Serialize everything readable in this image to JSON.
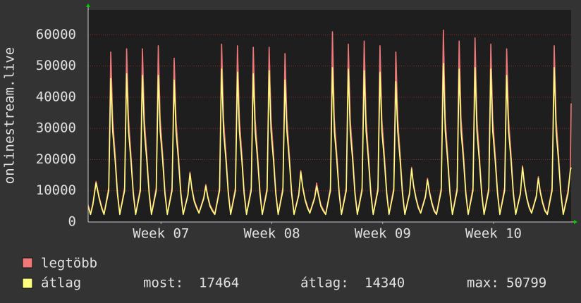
{
  "chart_data": {
    "type": "line",
    "ylabel": "onlinestream.live",
    "x": [
      0,
      0.15,
      0.3,
      0.5,
      0.7,
      0.85,
      1,
      1.3,
      1.43,
      1.55,
      1.7,
      1.85,
      2,
      2.3,
      2.43,
      2.55,
      2.7,
      2.85,
      3,
      3.3,
      3.43,
      3.55,
      3.7,
      3.85,
      4,
      4.3,
      4.43,
      4.55,
      4.7,
      4.85,
      5,
      5.3,
      5.43,
      5.55,
      5.7,
      5.85,
      6,
      6.3,
      6.43,
      6.55,
      6.7,
      6.85,
      7,
      7.3,
      7.43,
      7.55,
      7.7,
      7.85,
      8,
      8.3,
      8.43,
      8.55,
      8.7,
      8.85,
      9,
      9.3,
      9.43,
      9.55,
      9.7,
      9.85,
      10,
      10.3,
      10.43,
      10.55,
      10.7,
      10.85,
      11,
      11.3,
      11.43,
      11.55,
      11.7,
      11.85,
      12,
      12.3,
      12.43,
      12.55,
      12.7,
      12.85,
      13,
      13.3,
      13.43,
      13.55,
      13.7,
      13.85,
      14,
      14.3,
      14.43,
      14.55,
      14.7,
      14.85,
      15,
      15.3,
      15.43,
      15.55,
      15.7,
      15.85,
      16,
      16.3,
      16.43,
      16.55,
      16.7,
      16.85,
      17,
      17.3,
      17.43,
      17.55,
      17.7,
      17.85,
      18,
      18.3,
      18.43,
      18.55,
      18.7,
      18.85,
      19,
      19.3,
      19.43,
      19.55,
      19.7,
      19.85,
      20,
      20.3,
      20.43,
      20.55,
      20.7,
      20.85,
      21,
      21.3,
      21.43,
      21.55,
      21.7,
      21.85,
      22,
      22.3,
      22.43,
      22.55,
      22.7,
      22.85,
      23,
      23.3,
      23.43,
      23.55,
      23.7,
      23.85,
      24,
      24.3,
      24.43,
      24.55,
      24.7,
      24.85,
      25,
      25.3,
      25.43,
      25.55,
      25.7,
      25.85,
      26,
      26.3,
      26.43,
      26.55,
      26.7,
      26.85,
      27,
      27.3,
      27.43,
      27.55,
      27.7,
      27.85,
      28,
      28.3,
      28.43,
      28.55,
      28.7,
      28.85,
      29,
      29.3,
      29.43,
      29.55,
      29.7,
      29.85,
      30,
      30.3,
      30.45,
      30.5
    ],
    "series": [
      {
        "name": "legtöbb",
        "color": "#f07878",
        "values": [
          5500,
          2600,
          6000,
          13000,
          8000,
          5000,
          2600,
          11000,
          54500,
          33000,
          22000,
          10000,
          2600,
          11000,
          55500,
          33000,
          22000,
          10000,
          2600,
          11000,
          55500,
          33000,
          22000,
          10000,
          2600,
          11000,
          56500,
          33000,
          22000,
          10000,
          2600,
          11000,
          52500,
          33000,
          22000,
          10000,
          2600,
          9000,
          16000,
          11000,
          7000,
          5000,
          3000,
          8000,
          12000,
          8500,
          5500,
          4000,
          2600,
          11000,
          57000,
          33000,
          22000,
          10000,
          2600,
          11000,
          56500,
          33000,
          22000,
          10000,
          2600,
          11000,
          56000,
          33000,
          22000,
          10000,
          2600,
          11000,
          56000,
          33000,
          22000,
          10000,
          2600,
          11000,
          54000,
          33000,
          22000,
          10000,
          2600,
          9000,
          16500,
          11500,
          7500,
          5000,
          3000,
          8000,
          12500,
          9000,
          5500,
          4000,
          2600,
          11000,
          61000,
          33000,
          22000,
          10000,
          2600,
          11000,
          57000,
          33000,
          22000,
          10000,
          2600,
          11000,
          58000,
          33000,
          22000,
          10000,
          2600,
          11000,
          56500,
          33000,
          22000,
          10000,
          2600,
          11000,
          54500,
          33000,
          22000,
          10000,
          2600,
          9500,
          17500,
          12000,
          8000,
          5000,
          3000,
          8500,
          14000,
          10000,
          6500,
          4000,
          2600,
          11000,
          61500,
          33000,
          22000,
          10000,
          2600,
          11000,
          58000,
          33000,
          22000,
          10000,
          2600,
          11000,
          59000,
          33000,
          22000,
          10000,
          2600,
          11000,
          57000,
          33000,
          22000,
          10000,
          2600,
          11000,
          55500,
          33000,
          22000,
          10000,
          2600,
          9500,
          18000,
          12500,
          8000,
          5000,
          3000,
          8500,
          14500,
          10000,
          6500,
          4000,
          2600,
          11000,
          56500,
          33000,
          22000,
          10000,
          2600,
          10000,
          17000,
          38000
        ]
      },
      {
        "name": "átlag",
        "color": "#ffff80",
        "values": [
          5000,
          2400,
          5500,
          12500,
          7500,
          4500,
          2400,
          10000,
          46000,
          29000,
          20000,
          9000,
          2400,
          10000,
          47500,
          29000,
          20000,
          9000,
          2400,
          10000,
          47000,
          29000,
          20000,
          9000,
          2400,
          10000,
          47000,
          29000,
          20000,
          9000,
          2400,
          10000,
          45500,
          29000,
          20000,
          9000,
          2400,
          8500,
          15500,
          10500,
          6500,
          4500,
          2800,
          7500,
          11500,
          8000,
          5000,
          3500,
          2400,
          10000,
          49000,
          29000,
          20000,
          9000,
          2400,
          10000,
          48000,
          29000,
          20000,
          9000,
          2400,
          10000,
          47500,
          29000,
          20000,
          9000,
          2400,
          10000,
          48500,
          29000,
          20000,
          9000,
          2400,
          10000,
          45500,
          29000,
          20000,
          9000,
          2400,
          8500,
          16000,
          11000,
          7000,
          4500,
          2800,
          7500,
          11500,
          8500,
          5000,
          3500,
          2400,
          10000,
          49500,
          29000,
          20000,
          9000,
          2400,
          10000,
          49000,
          29000,
          20000,
          9000,
          2400,
          10000,
          48500,
          29000,
          20000,
          9000,
          2400,
          10000,
          48000,
          29000,
          20000,
          9000,
          2400,
          10000,
          45000,
          29000,
          20000,
          9000,
          2400,
          9000,
          17000,
          11500,
          7500,
          4500,
          2800,
          8000,
          13500,
          9500,
          6000,
          3500,
          2400,
          10000,
          50799,
          29000,
          20000,
          9000,
          2400,
          10000,
          49000,
          29000,
          20000,
          9000,
          2400,
          10000,
          49500,
          29000,
          20000,
          9000,
          2400,
          10000,
          49000,
          29000,
          20000,
          9000,
          2400,
          10000,
          47000,
          29000,
          20000,
          9000,
          2400,
          9000,
          17500,
          12000,
          7500,
          4500,
          2800,
          8000,
          14000,
          9500,
          6000,
          3500,
          2400,
          10000,
          49500,
          29000,
          20000,
          9000,
          2400,
          9000,
          16500,
          17464
        ]
      }
    ],
    "xlim": [
      0,
      30.5
    ],
    "xticks": [
      {
        "value": 4.6,
        "label": "Week 07"
      },
      {
        "value": 11.6,
        "label": "Week 08"
      },
      {
        "value": 18.6,
        "label": "Week 09"
      },
      {
        "value": 25.6,
        "label": "Week 10"
      }
    ],
    "ylim": [
      0,
      68000
    ],
    "yticks": [
      0,
      10000,
      20000,
      30000,
      40000,
      50000,
      60000
    ],
    "grid": true,
    "stats": [
      {
        "label": "most:",
        "value": 17464
      },
      {
        "label": "átlag:",
        "value": 14340
      },
      {
        "label": "max:",
        "value": 50799
      }
    ]
  }
}
